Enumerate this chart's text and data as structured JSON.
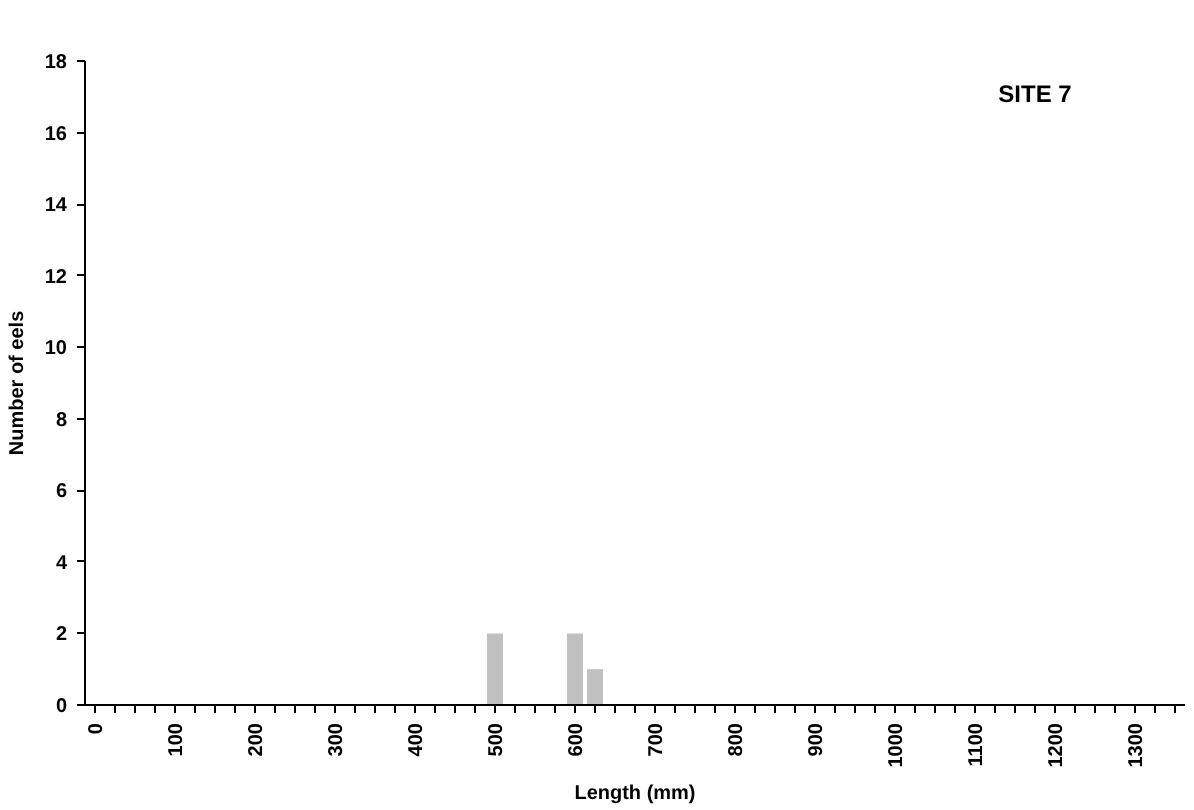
{
  "chart_data": {
    "type": "bar",
    "title": "SITE 7",
    "xlabel": "Length (mm)",
    "ylabel": "Number of eels",
    "categories": [
      "0",
      null,
      null,
      null,
      "100",
      null,
      null,
      null,
      "200",
      null,
      null,
      null,
      "300",
      null,
      null,
      null,
      "400",
      null,
      null,
      null,
      "500",
      null,
      null,
      null,
      "600",
      null,
      null,
      null,
      "700",
      null,
      null,
      null,
      "800",
      null,
      null,
      null,
      "900",
      null,
      null,
      null,
      "1000",
      null,
      null,
      null,
      "1100",
      null,
      null,
      null,
      "1200",
      null,
      null,
      null,
      "1300",
      null,
      null
    ],
    "values": [
      0,
      0,
      0,
      0,
      0,
      0,
      0,
      0,
      0,
      0,
      0,
      0,
      0,
      0,
      0,
      0,
      0,
      0,
      0,
      0,
      2,
      0,
      0,
      0,
      2,
      1,
      0,
      0,
      0,
      0,
      0,
      0,
      0,
      0,
      0,
      0,
      0,
      0,
      0,
      0,
      0,
      0,
      0,
      0,
      0,
      0,
      0,
      0,
      0,
      0,
      0,
      0,
      0,
      0,
      0
    ],
    "color": "#c0c0c0",
    "ylim": [
      0,
      18
    ],
    "yticks": [
      0,
      2,
      4,
      6,
      8,
      10,
      12,
      14,
      16,
      18
    ],
    "grid": false
  }
}
